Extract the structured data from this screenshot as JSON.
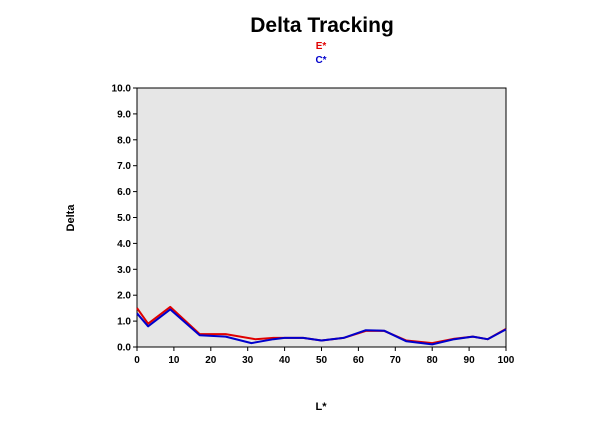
{
  "chart_data": {
    "type": "line",
    "title": "Delta Tracking",
    "xlabel": "L*",
    "ylabel": "Delta",
    "xlim": [
      0,
      100
    ],
    "ylim": [
      0,
      10
    ],
    "xticks": [
      "0",
      "10",
      "20",
      "30",
      "40",
      "50",
      "60",
      "70",
      "80",
      "90",
      "100"
    ],
    "yticks": [
      "0.0",
      "1.0",
      "2.0",
      "3.0",
      "4.0",
      "5.0",
      "6.0",
      "7.0",
      "8.0",
      "9.0",
      "10.0"
    ],
    "grid": false,
    "legend_position": "top-center",
    "plot_background": "#e6e6e6",
    "series": [
      {
        "name": "E*",
        "color": "#e00000",
        "x": [
          0,
          3,
          9,
          17,
          24,
          32,
          37,
          40,
          45,
          50,
          56,
          62,
          67,
          73,
          80,
          86,
          91,
          95,
          100
        ],
        "y": [
          1.5,
          0.9,
          1.55,
          0.5,
          0.5,
          0.3,
          0.35,
          0.35,
          0.35,
          0.25,
          0.35,
          0.62,
          0.62,
          0.25,
          0.15,
          0.32,
          0.4,
          0.3,
          0.7
        ]
      },
      {
        "name": "C*",
        "color": "#0000cc",
        "x": [
          0,
          3,
          9,
          17,
          24,
          31,
          37,
          40,
          45,
          50,
          56,
          62,
          67,
          73,
          80,
          86,
          91,
          95,
          100
        ],
        "y": [
          1.3,
          0.8,
          1.45,
          0.45,
          0.4,
          0.15,
          0.3,
          0.35,
          0.35,
          0.25,
          0.35,
          0.65,
          0.63,
          0.22,
          0.1,
          0.3,
          0.4,
          0.3,
          0.68
        ]
      }
    ]
  }
}
